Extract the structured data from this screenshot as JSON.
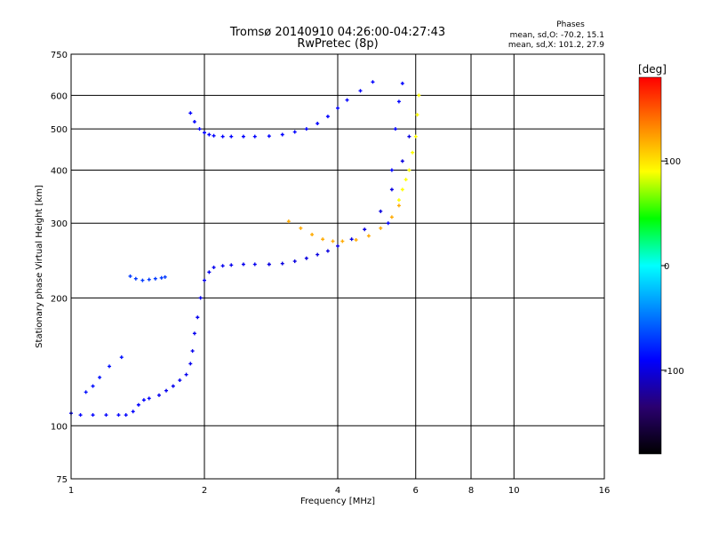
{
  "chart_data": {
    "type": "scatter",
    "title": "Tromsø 20140910 04:26:00-04:27:43",
    "subtitle": "RwPretec (8p)",
    "xlabel": "Frequency [MHz]",
    "ylabel": "Stationary phase Virtual Height [km]",
    "x_scale": "log",
    "y_scale": "log",
    "xlim": [
      1,
      16
    ],
    "ylim": [
      75,
      750
    ],
    "xticks": [
      1,
      2,
      4,
      6,
      8,
      10,
      16
    ],
    "yticks": [
      75,
      100,
      200,
      300,
      400,
      500,
      600,
      750
    ],
    "grid": true,
    "stats": {
      "title": "Phases",
      "o_line": "mean, sd,O: -70.2, 15.1",
      "x_line": "mean, sd,X: 101.2, 27.9"
    },
    "colorbar": {
      "label": "[deg]",
      "range": [
        -180,
        180
      ],
      "ticks": [
        100,
        0,
        -100
      ],
      "colors": [
        "#000000",
        "#2a0070",
        "#0000ff",
        "#0080ff",
        "#00ffff",
        "#00ff00",
        "#ffff00",
        "#ff8000",
        "#ff0000"
      ]
    },
    "series": [
      {
        "phase": -90,
        "x": [
          1.0,
          1.05,
          1.12,
          1.2,
          1.28,
          1.33,
          1.38,
          1.42,
          1.46,
          1.5
        ],
        "y": [
          107,
          106,
          106,
          106,
          106,
          106,
          108,
          112,
          115,
          116
        ]
      },
      {
        "phase": -95,
        "x": [
          1.58,
          1.64,
          1.7,
          1.76,
          1.82,
          1.86,
          1.88,
          1.9,
          1.93,
          1.96,
          2.0,
          2.05,
          2.1,
          2.2,
          2.3,
          2.45,
          2.6,
          2.8
        ],
        "y": [
          118,
          121,
          124,
          128,
          132,
          140,
          150,
          165,
          180,
          200,
          220,
          230,
          236,
          238,
          239,
          240,
          240,
          240
        ]
      },
      {
        "phase": -100,
        "x": [
          2.8,
          3.0,
          3.2,
          3.4,
          3.6,
          3.8,
          4.0,
          4.3,
          4.6,
          5.0,
          5.3,
          5.6,
          5.8
        ],
        "y": [
          240,
          241,
          244,
          248,
          253,
          258,
          265,
          275,
          290,
          320,
          360,
          420,
          480
        ]
      },
      {
        "phase": -90,
        "x": [
          1.86,
          1.9,
          1.95,
          2.0,
          2.05,
          2.1,
          2.2,
          2.3,
          2.45,
          2.6,
          2.8,
          3.0,
          3.2,
          3.4,
          3.6,
          3.8,
          4.0,
          4.2,
          4.5,
          4.8
        ],
        "y": [
          545,
          520,
          500,
          490,
          485,
          482,
          480,
          480,
          480,
          480,
          481,
          485,
          492,
          500,
          515,
          535,
          560,
          585,
          615,
          645
        ]
      },
      {
        "phase": -90,
        "x": [
          5.2,
          5.3,
          5.4,
          5.5,
          5.6
        ],
        "y": [
          300,
          400,
          500,
          580,
          640
        ]
      },
      {
        "phase": 120,
        "x": [
          3.1,
          3.3,
          3.5,
          3.7,
          3.9,
          4.1,
          4.4,
          4.7,
          5.0,
          5.3,
          5.5
        ],
        "y": [
          303,
          292,
          282,
          275,
          272,
          272,
          274,
          280,
          292,
          310,
          330
        ]
      },
      {
        "phase": 90,
        "x": [
          5.5,
          5.6,
          5.7,
          5.8,
          5.9,
          6.0,
          6.05,
          6.1
        ],
        "y": [
          340,
          360,
          380,
          400,
          440,
          480,
          540,
          600
        ]
      },
      {
        "phase": -70,
        "x": [
          1.36,
          1.4,
          1.45,
          1.5,
          1.55,
          1.6,
          1.63
        ],
        "y": [
          225,
          222,
          220,
          221,
          222,
          223,
          224
        ]
      },
      {
        "phase": -85,
        "x": [
          1.08,
          1.12,
          1.16,
          1.22,
          1.3
        ],
        "y": [
          120,
          124,
          130,
          138,
          145
        ]
      }
    ]
  }
}
